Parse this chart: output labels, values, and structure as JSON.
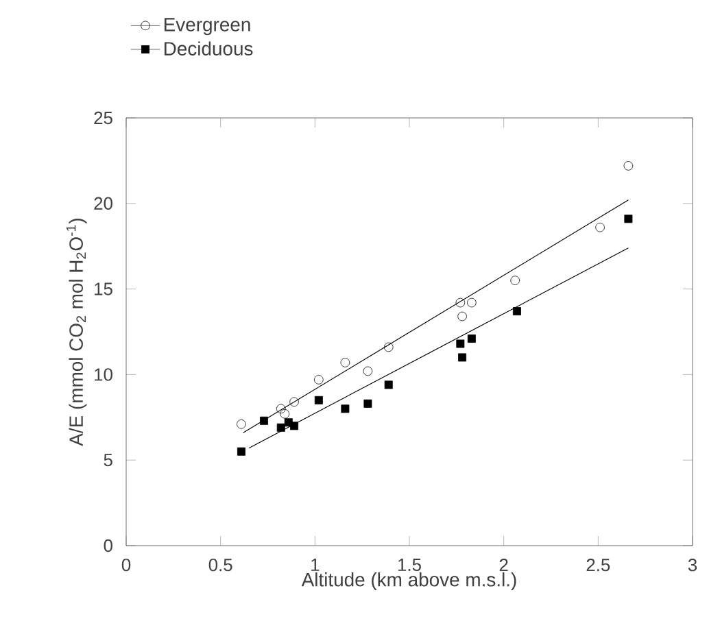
{
  "chart_data": {
    "type": "scatter",
    "xlabel": "Altitude (km above m.s.l.)",
    "ylabel": "A/E (mmol CO$_{2}$ mol H$_{2}$O$^{-1}$)",
    "xlim": [
      0,
      3
    ],
    "ylim": [
      0,
      25
    ],
    "xticks": [
      0,
      0.5,
      1,
      1.5,
      2,
      2.5,
      3
    ],
    "yticks": [
      0,
      5,
      10,
      15,
      20,
      25
    ],
    "legend": "top left",
    "grid": false,
    "series": [
      {
        "name": "Evergreen",
        "color": "#000000",
        "marker": "circle",
        "x": [
          0.61,
          0.82,
          0.84,
          0.89,
          1.02,
          1.16,
          1.28,
          1.39,
          1.77,
          1.78,
          1.83,
          2.06,
          2.51,
          2.66
        ],
        "values": [
          7.1,
          8.0,
          7.7,
          8.4,
          9.7,
          10.7,
          10.2,
          11.6,
          14.2,
          13.4,
          14.2,
          15.5,
          18.6,
          22.2
        ]
      },
      {
        "name": "Deciduous",
        "color": "#000000",
        "marker": "square",
        "x": [
          0.61,
          0.73,
          0.82,
          0.86,
          0.89,
          1.02,
          1.16,
          1.28,
          1.39,
          1.77,
          1.78,
          1.83,
          2.07,
          2.66
        ],
        "values": [
          5.5,
          7.3,
          6.9,
          7.2,
          7.0,
          8.5,
          8.0,
          8.3,
          9.4,
          11.8,
          11.0,
          12.1,
          13.7,
          19.1
        ]
      },
      {
        "type": "line",
        "color": "#000000",
        "marker": "none",
        "line_style": "solid",
        "x": [
          0.62,
          2.66
        ],
        "values": [
          6.6,
          20.2
        ]
      },
      {
        "type": "line",
        "color": "#000000",
        "marker": "none",
        "line_style": "solid",
        "x": [
          0.65,
          2.66
        ],
        "values": [
          5.7,
          17.4
        ]
      }
    ]
  }
}
